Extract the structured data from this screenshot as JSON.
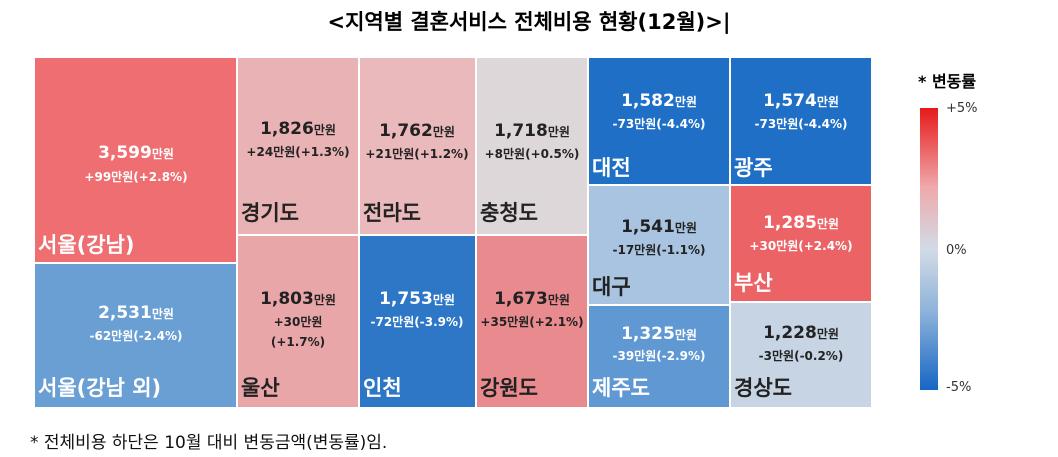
{
  "title": "<지역별 결혼서비스 전체비용 현황(12월)>|",
  "footnote": "* 전체비용 하단은 10월 대비 변동금액(변동률)임.",
  "legend": {
    "title": "* 변동률",
    "max_label": "+5%",
    "mid_label": "0%",
    "min_label": "-5%"
  },
  "chart_data": {
    "type": "treemap",
    "unit": "만원",
    "regions": [
      {
        "name": "서울(강남)",
        "value": "3,599",
        "change": "+99만원(+2.8%)",
        "pct": 2.8,
        "color": "#ee6e71"
      },
      {
        "name": "서울(강남 외)",
        "value": "2,531",
        "change": "-62만원(-2.4%)",
        "pct": -2.4,
        "color": "#6a9fd4"
      },
      {
        "name": "경기도",
        "value": "1,826",
        "change": "+24만원(+1.3%)",
        "pct": 1.3,
        "color": "#e9b3b5"
      },
      {
        "name": "울산",
        "value": "1,803",
        "change": "+30만원(+1.7%)",
        "pct": 1.7,
        "color": "#e9a6a9"
      },
      {
        "name": "전라도",
        "value": "1,762",
        "change": "+21만원(+1.2%)",
        "pct": 1.2,
        "color": "#e9b9bb"
      },
      {
        "name": "인천",
        "value": "1,753",
        "change": "-72만원(-3.9%)",
        "pct": -3.9,
        "color": "#2d77c6"
      },
      {
        "name": "충청도",
        "value": "1,718",
        "change": "+8만원(+0.5%)",
        "pct": 0.5,
        "color": "#ddd7d9"
      },
      {
        "name": "강원도",
        "value": "1,673",
        "change": "+35만원(+2.1%)",
        "pct": 2.1,
        "color": "#e98b8e"
      },
      {
        "name": "대전",
        "value": "1,582",
        "change": "-73만원(-4.4%)",
        "pct": -4.4,
        "color": "#1f6fc6"
      },
      {
        "name": "광주",
        "value": "1,574",
        "change": "-73만원(-4.4%)",
        "pct": -4.4,
        "color": "#1f6fc6"
      },
      {
        "name": "대구",
        "value": "1,541",
        "change": "-17만원(-1.1%)",
        "pct": -1.1,
        "color": "#a9c4e0"
      },
      {
        "name": "부산",
        "value": "1,285",
        "change": "+30만원(+2.4%)",
        "pct": 2.4,
        "color": "#ec6366"
      },
      {
        "name": "제주도",
        "value": "1,325",
        "change": "-39만원(-2.9%)",
        "pct": -2.9,
        "color": "#5f98d2"
      },
      {
        "name": "경상도",
        "value": "1,228",
        "change": "-3만원(-0.2%)",
        "pct": -0.2,
        "color": "#c6d4e4"
      }
    ]
  }
}
